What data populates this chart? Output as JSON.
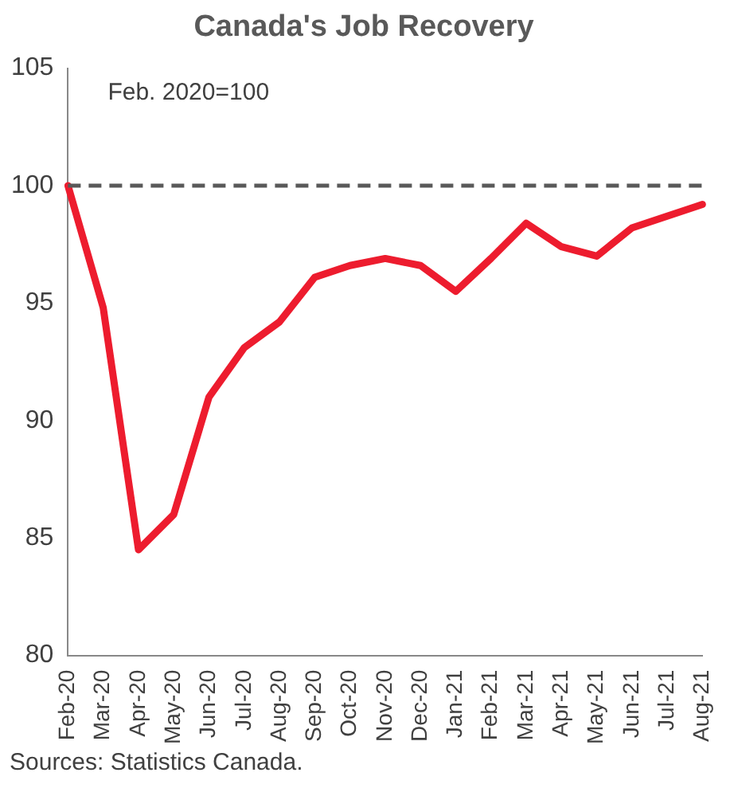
{
  "chart_data": {
    "type": "line",
    "title": "Canada's Job Recovery",
    "categories": [
      "Feb-20",
      "Mar-20",
      "Apr-20",
      "May-20",
      "Jun-20",
      "Jul-20",
      "Aug-20",
      "Sep-20",
      "Oct-20",
      "Nov-20",
      "Dec-20",
      "Jan-21",
      "Feb-21",
      "Mar-21",
      "Apr-21",
      "May-21",
      "Jun-21",
      "Jul-21",
      "Aug-21"
    ],
    "series": [
      {
        "color": "#ed1c2e",
        "values": [
          100,
          94.8,
          84.5,
          86.0,
          91.0,
          93.1,
          94.2,
          96.1,
          96.6,
          96.9,
          96.6,
          95.5,
          96.9,
          98.4,
          97.4,
          97.0,
          98.2,
          98.7,
          99.2
        ]
      }
    ],
    "ylim": [
      80,
      105
    ],
    "yticks": [
      80,
      85,
      90,
      95,
      100,
      105
    ],
    "ref_lines": [
      {
        "axis": "y",
        "value": 100,
        "color": "#595959",
        "line_style": "dashed"
      }
    ],
    "annotations": [
      "Feb. 2020=100",
      "Sources: Statistics Canada."
    ],
    "grid": false,
    "legend": false,
    "marker": "none",
    "line_style": "solid"
  }
}
